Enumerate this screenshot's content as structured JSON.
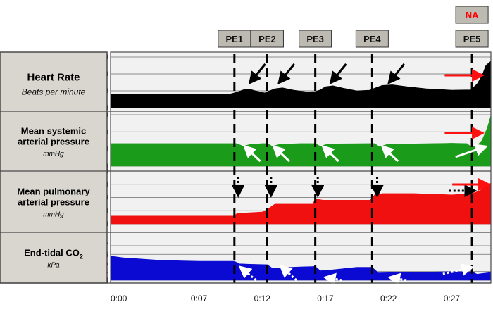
{
  "chart_data": {
    "type": "area",
    "time_axis": {
      "labels": [
        "0:00",
        "0:07",
        "0:12",
        "0:17",
        "0:22",
        "0:27"
      ],
      "values": [
        0,
        7,
        12,
        17,
        22,
        27
      ]
    },
    "events": [
      {
        "label": "PE1",
        "time": 9.8
      },
      {
        "label": "PE2",
        "time": 12.4
      },
      {
        "label": "PE3",
        "time": 16.2
      },
      {
        "label": "PE4",
        "time": 20.7
      },
      {
        "label": "PE5",
        "time": 28.6
      }
    ],
    "drug_annotation": {
      "label": "NA",
      "color": "#ff0000"
    },
    "panels": [
      {
        "key": "hr",
        "title_lines": [
          "Heart Rate"
        ],
        "unit": "Beats per minute",
        "color": "#000000",
        "ylim": [
          0,
          150
        ],
        "yticks": [
          0,
          50,
          100,
          150
        ],
        "series": [
          [
            0,
            40
          ],
          [
            9.5,
            41
          ],
          [
            10,
            46
          ],
          [
            10.5,
            53
          ],
          [
            11,
            55
          ],
          [
            11.6,
            49
          ],
          [
            12.2,
            44
          ],
          [
            12.5,
            49
          ],
          [
            13,
            56
          ],
          [
            13.6,
            59
          ],
          [
            14.5,
            52
          ],
          [
            15.5,
            47
          ],
          [
            16.2,
            48
          ],
          [
            16.6,
            53
          ],
          [
            17,
            62
          ],
          [
            17.6,
            65
          ],
          [
            18.4,
            58
          ],
          [
            19.5,
            50
          ],
          [
            20.5,
            52
          ],
          [
            20.9,
            58
          ],
          [
            21.5,
            66
          ],
          [
            22.3,
            68
          ],
          [
            23.5,
            62
          ],
          [
            25,
            56
          ],
          [
            27,
            52
          ],
          [
            28.5,
            53
          ],
          [
            29,
            70
          ],
          [
            29.4,
            95
          ],
          [
            29.7,
            125
          ],
          [
            30.1,
            138
          ]
        ]
      },
      {
        "key": "msap",
        "title_lines": [
          "Mean systemic",
          "arterial pressure"
        ],
        "unit": "mmHg",
        "color": "#1a9b1a",
        "ylim": [
          0,
          150
        ],
        "yticks": [
          0,
          50,
          100,
          150
        ],
        "series": [
          [
            0,
            66
          ],
          [
            9.5,
            66
          ],
          [
            10,
            66
          ],
          [
            10.5,
            58
          ],
          [
            11,
            63
          ],
          [
            12,
            66
          ],
          [
            12.4,
            66
          ],
          [
            12.8,
            58
          ],
          [
            13.4,
            64
          ],
          [
            15,
            66
          ],
          [
            16.2,
            66
          ],
          [
            16.6,
            58
          ],
          [
            17.2,
            65
          ],
          [
            20.5,
            66
          ],
          [
            20.9,
            66
          ],
          [
            21.3,
            56
          ],
          [
            21.9,
            64
          ],
          [
            27,
            67
          ],
          [
            28.2,
            66
          ],
          [
            28.6,
            55
          ],
          [
            29,
            60
          ],
          [
            29.4,
            75
          ],
          [
            29.8,
            110
          ],
          [
            30.1,
            148
          ]
        ]
      },
      {
        "key": "mpap",
        "title_lines": [
          "Mean pulmonary",
          "arterial pressure"
        ],
        "unit": "mmHg",
        "color": "#f01010",
        "ylim": [
          10,
          50
        ],
        "yticks": [
          10,
          20,
          30,
          40,
          50
        ],
        "series": [
          [
            0,
            16
          ],
          [
            9.8,
            16
          ],
          [
            10,
            18
          ],
          [
            12,
            19
          ],
          [
            12.4,
            21
          ],
          [
            13,
            25
          ],
          [
            16,
            25
          ],
          [
            16.2,
            29
          ],
          [
            16.8,
            28
          ],
          [
            20.5,
            28
          ],
          [
            20.9,
            32
          ],
          [
            21.5,
            33
          ],
          [
            24,
            33
          ],
          [
            27,
            32
          ],
          [
            28.6,
            33
          ],
          [
            29.2,
            35
          ],
          [
            29.6,
            38
          ],
          [
            30.1,
            41
          ]
        ]
      },
      {
        "key": "etco2",
        "title_lines": [
          "End-tidal CO"
        ],
        "title_sub": "2",
        "unit": "kPa",
        "color": "#0a0ad2",
        "ylim": [
          3,
          7
        ],
        "yticks": [
          3,
          4,
          5,
          6,
          7
        ],
        "series": [
          [
            0,
            5.8
          ],
          [
            1,
            5.6
          ],
          [
            4,
            5.3
          ],
          [
            7,
            5.2
          ],
          [
            9.8,
            5.2
          ],
          [
            10.2,
            4.9
          ],
          [
            11,
            4.85
          ],
          [
            12.4,
            4.8
          ],
          [
            12.8,
            4.4
          ],
          [
            13.5,
            4.45
          ],
          [
            15,
            4.55
          ],
          [
            16.2,
            4.6
          ],
          [
            16.6,
            4.1
          ],
          [
            17.5,
            4.2
          ],
          [
            19.5,
            4.5
          ],
          [
            20.7,
            4.5
          ],
          [
            21.2,
            3.85
          ],
          [
            23,
            3.9
          ],
          [
            27,
            4.0
          ],
          [
            28.6,
            4.0
          ],
          [
            29,
            3.7
          ],
          [
            29.5,
            3.8
          ],
          [
            30.1,
            3.9
          ]
        ]
      }
    ]
  }
}
